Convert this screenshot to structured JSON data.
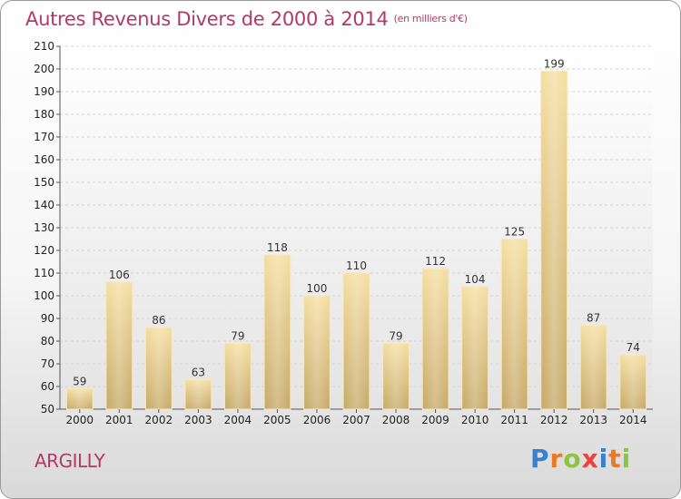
{
  "title": {
    "main": "Autres Revenus Divers de 2000 à 2014",
    "unit": "(en milliers d'€)"
  },
  "commune": "ARGILLY",
  "logo": {
    "text": "Proxiti",
    "colors": [
      "#3a7fd0",
      "#e87a2a",
      "#8cc63f",
      "#e8433c"
    ]
  },
  "chart_data": {
    "type": "bar",
    "title": "Autres Revenus Divers de 2000 à 2014",
    "subtitle": "(en milliers d'€)",
    "xlabel": "",
    "ylabel": "",
    "categories": [
      "2000",
      "2001",
      "2002",
      "2003",
      "2004",
      "2005",
      "2006",
      "2007",
      "2008",
      "2009",
      "2010",
      "2011",
      "2012",
      "2013",
      "2014"
    ],
    "values": [
      59,
      106,
      86,
      63,
      79,
      118,
      100,
      110,
      79,
      112,
      104,
      125,
      199,
      87,
      74
    ],
    "ylim": [
      50,
      210
    ],
    "yticks": [
      50,
      60,
      70,
      80,
      90,
      100,
      110,
      120,
      130,
      140,
      150,
      160,
      170,
      180,
      190,
      200,
      210
    ],
    "grid": true,
    "legend": "none",
    "bar_color": "#e3c98a"
  }
}
